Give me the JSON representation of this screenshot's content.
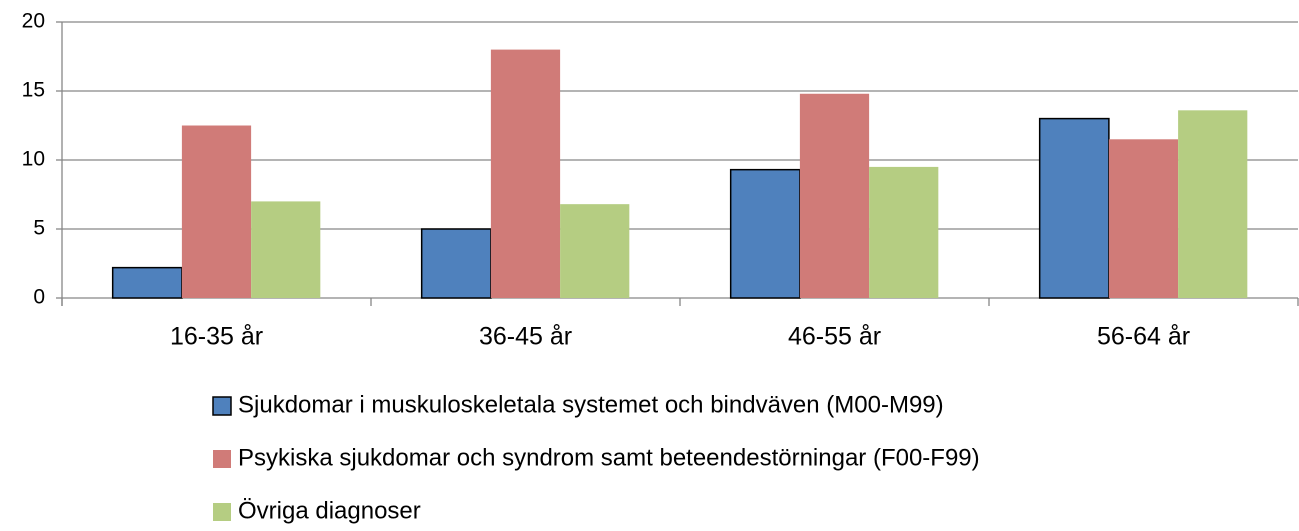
{
  "chart_data": {
    "type": "bar",
    "categories": [
      "16-35 år",
      "36-45 år",
      "46-55 år",
      "56-64 år"
    ],
    "series": [
      {
        "name": "Sjukdomar i muskuloskeletala systemet och bindväven (M00-M99)",
        "color": "#4f81bd",
        "values": [
          2.2,
          5.0,
          9.3,
          13.0
        ]
      },
      {
        "name": "Psykiska sjukdomar och syndrom samt beteendestörningar (F00-F99)",
        "color": "#d07b78",
        "values": [
          12.5,
          18.0,
          14.8,
          11.5
        ]
      },
      {
        "name": "Övriga diagnoser",
        "color": "#b5cd82",
        "values": [
          7.0,
          6.8,
          9.5,
          13.6
        ]
      }
    ],
    "ylim": [
      0,
      20
    ],
    "yticks": [
      0,
      5,
      10,
      15,
      20
    ],
    "grid": true,
    "legend": "bottom"
  }
}
